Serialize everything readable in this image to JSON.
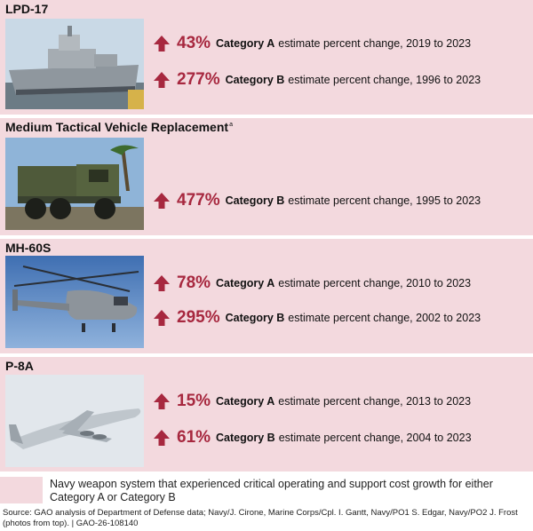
{
  "systems": [
    {
      "name": "LPD-17",
      "footnote": "",
      "photo": "amphibious-ship-photo",
      "stats": [
        {
          "percent": "43%",
          "category": "Category A",
          "description": "estimate percent change, 2019 to 2023"
        },
        {
          "percent": "277%",
          "category": "Category B",
          "description": "estimate percent change, 1996 to 2023"
        }
      ]
    },
    {
      "name": "Medium Tactical Vehicle Replacement",
      "footnote": "a",
      "photo": "military-truck-photo",
      "stats": [
        {
          "percent": "477%",
          "category": "Category B",
          "description": "estimate percent change, 1995 to 2023"
        }
      ]
    },
    {
      "name": "MH-60S",
      "footnote": "",
      "photo": "helicopter-photo",
      "stats": [
        {
          "percent": "78%",
          "category": "Category A",
          "description": "estimate percent change, 2010 to 2023"
        },
        {
          "percent": "295%",
          "category": "Category B",
          "description": "estimate percent change, 2002 to 2023"
        }
      ]
    },
    {
      "name": "P-8A",
      "footnote": "",
      "photo": "patrol-aircraft-photo",
      "stats": [
        {
          "percent": "15%",
          "category": "Category A",
          "description": "estimate percent change, 2013 to 2023"
        },
        {
          "percent": "61%",
          "category": "Category B",
          "description": "estimate percent change, 2004 to 2023"
        }
      ]
    }
  ],
  "legend": {
    "text": "Navy weapon system that experienced critical operating and support cost growth for either Category A or Category B"
  },
  "source": "Source: GAO analysis of Department of Defense data; Navy/J. Cirone, Marine Corps/Cpl. I. Gantt, Navy/PO1 S. Edgar, Navy/PO2 J. Frost  (photos from top).  |  GAO-26-108140",
  "colors": {
    "panel_background": "#f3d9de",
    "accent": "#a7283f"
  }
}
